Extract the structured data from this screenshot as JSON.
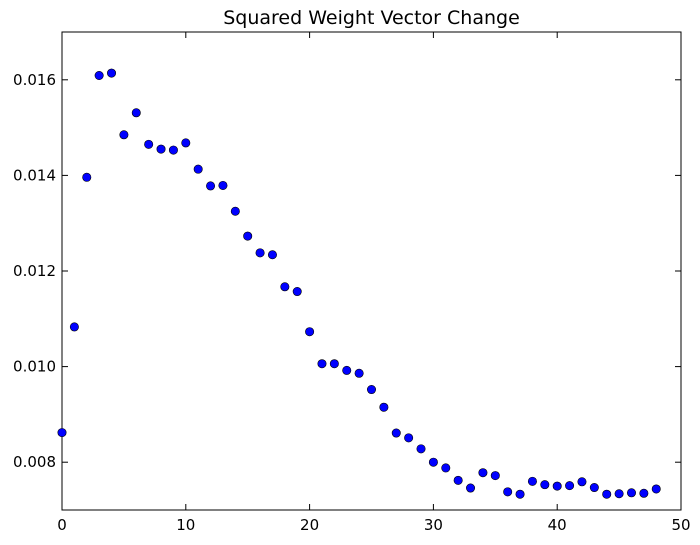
{
  "chart_data": {
    "type": "scatter",
    "title": "Squared Weight Vector Change",
    "xlabel": "",
    "ylabel": "",
    "xlim": [
      0,
      50
    ],
    "ylim": [
      0.007,
      0.017
    ],
    "xticks": [
      0,
      10,
      20,
      30,
      40,
      50
    ],
    "xtick_labels": [
      "0",
      "10",
      "20",
      "30",
      "40",
      "50"
    ],
    "yticks": [
      0.008,
      0.01,
      0.012,
      0.014,
      0.016
    ],
    "ytick_labels": [
      "0.008",
      "0.010",
      "0.012",
      "0.014",
      "0.016"
    ],
    "grid": false,
    "marker_color": "#0000ff",
    "marker_edge_color": "#000000",
    "series": [
      {
        "x": [
          0,
          1,
          2,
          3,
          4,
          5,
          6,
          7,
          8,
          9,
          10,
          11,
          12,
          13,
          14,
          15,
          16,
          17,
          18,
          19,
          20,
          21,
          22,
          23,
          24,
          25,
          26,
          27,
          28,
          29,
          30,
          31,
          32,
          33,
          34,
          35,
          36,
          37,
          38,
          39,
          40,
          41,
          42,
          43,
          44,
          45,
          46,
          47,
          48
        ],
        "y": [
          0.00862,
          0.01083,
          0.01396,
          0.01609,
          0.01614,
          0.01485,
          0.01531,
          0.01465,
          0.01455,
          0.01453,
          0.01468,
          0.01413,
          0.01378,
          0.01379,
          0.01325,
          0.01273,
          0.01238,
          0.01234,
          0.01167,
          0.01157,
          0.01073,
          0.01006,
          0.01006,
          0.00992,
          0.00986,
          0.00952,
          0.00915,
          0.00861,
          0.00851,
          0.00828,
          0.008,
          0.00788,
          0.00762,
          0.00746,
          0.00778,
          0.00772,
          0.00738,
          0.00733,
          0.0076,
          0.00753,
          0.0075,
          0.00751,
          0.00759,
          0.00747,
          0.00733,
          0.00734,
          0.00736,
          0.00735,
          0.00744
        ]
      }
    ]
  }
}
